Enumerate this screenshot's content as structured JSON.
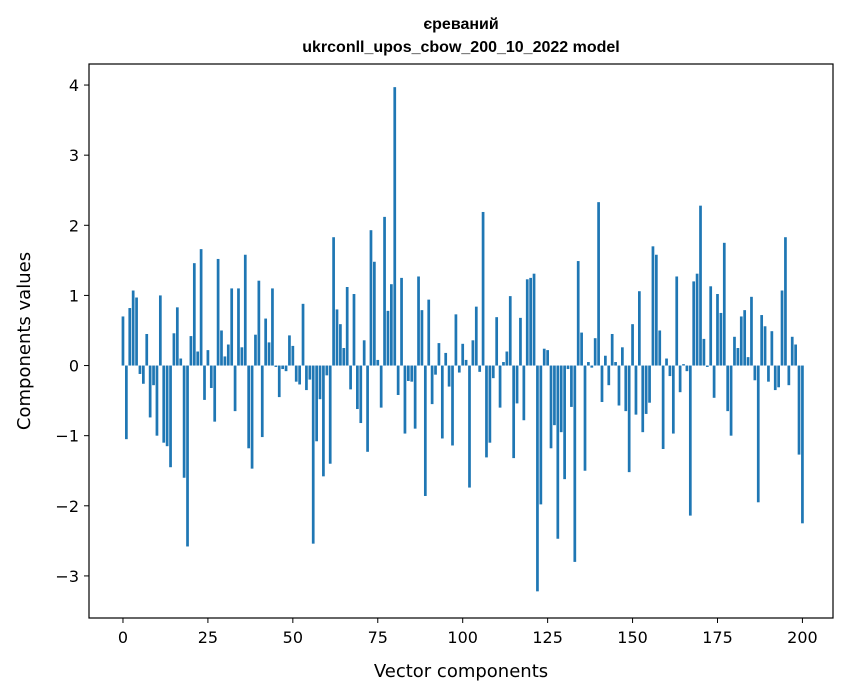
{
  "chart_data": {
    "type": "bar",
    "title_line1": "єреваний",
    "title_line2": "ukrconll_upos_cbow_200_10_2022 model",
    "xlabel": "Vector components",
    "ylabel": "Components values",
    "xlim": [
      -10,
      209
    ],
    "ylim": [
      -3.6,
      4.3
    ],
    "x_ticks": [
      0,
      25,
      50,
      75,
      100,
      125,
      150,
      175,
      200
    ],
    "x_tick_labels": [
      "0",
      "25",
      "50",
      "75",
      "100",
      "125",
      "150",
      "175",
      "200"
    ],
    "y_ticks": [
      -3,
      -2,
      -1,
      0,
      1,
      2,
      3,
      4
    ],
    "y_tick_labels": [
      "−3",
      "−2",
      "−1",
      "0",
      "1",
      "2",
      "3",
      "4"
    ],
    "bar_color": "#1f77b4",
    "values": [
      0.7,
      -1.05,
      0.82,
      1.07,
      0.97,
      -0.12,
      -0.26,
      0.45,
      -0.74,
      -0.28,
      -1.0,
      1.0,
      -1.1,
      -1.15,
      -1.45,
      0.46,
      0.83,
      0.1,
      -1.6,
      -2.58,
      0.42,
      1.46,
      0.2,
      1.66,
      -0.49,
      0.22,
      -0.32,
      -0.8,
      1.52,
      0.5,
      0.13,
      0.3,
      1.1,
      -0.65,
      1.1,
      0.26,
      1.58,
      -1.18,
      -1.47,
      0.44,
      1.21,
      -1.02,
      0.67,
      0.33,
      1.1,
      -0.02,
      -0.45,
      -0.05,
      -0.08,
      0.43,
      0.28,
      -0.23,
      -0.27,
      0.88,
      -0.35,
      -0.2,
      -2.54,
      -1.08,
      -0.48,
      -1.58,
      -0.14,
      -1.4,
      1.83,
      0.8,
      0.59,
      0.25,
      1.12,
      -0.34,
      1.02,
      -0.62,
      -0.82,
      0.36,
      -1.23,
      1.93,
      1.48,
      0.08,
      -0.6,
      2.12,
      0.78,
      1.16,
      3.97,
      -0.42,
      1.25,
      -0.97,
      -0.22,
      -0.23,
      -0.9,
      1.27,
      0.79,
      -1.86,
      0.94,
      -0.55,
      -0.13,
      0.32,
      -1.04,
      0.18,
      -0.3,
      -1.14,
      0.73,
      -0.1,
      0.31,
      0.08,
      -1.74,
      0.36,
      0.84,
      -0.09,
      2.19,
      -1.31,
      -1.1,
      -0.18,
      0.69,
      -0.6,
      0.05,
      0.2,
      0.99,
      -1.32,
      -0.54,
      0.68,
      -0.78,
      1.23,
      1.25,
      1.31,
      -3.22,
      -1.98,
      0.24,
      0.22,
      -1.18,
      -0.85,
      -2.47,
      -0.95,
      -1.62,
      -0.05,
      -0.59,
      -2.8,
      1.49,
      0.47,
      -1.5,
      0.05,
      -0.03,
      0.39,
      2.33,
      -0.52,
      0.14,
      -0.28,
      0.45,
      0.05,
      -0.57,
      0.26,
      -0.65,
      -1.52,
      0.59,
      -0.7,
      1.06,
      -0.95,
      -0.69,
      -0.53,
      1.7,
      1.58,
      0.5,
      -1.19,
      0.1,
      -0.15,
      -0.97,
      1.27,
      -0.38,
      0.02,
      -0.08,
      -2.14,
      1.2,
      1.31,
      2.28,
      0.38,
      -0.02,
      1.13,
      -0.46,
      1.02,
      0.75,
      1.75,
      -0.65,
      -1.0,
      0.41,
      0.25,
      0.7,
      0.79,
      0.12,
      0.98,
      -0.21,
      -1.95,
      0.72,
      0.56,
      -0.23,
      0.49,
      -0.35,
      -0.31,
      1.07,
      1.83,
      -0.28,
      0.41,
      0.3,
      -1.27,
      -2.25
    ]
  }
}
